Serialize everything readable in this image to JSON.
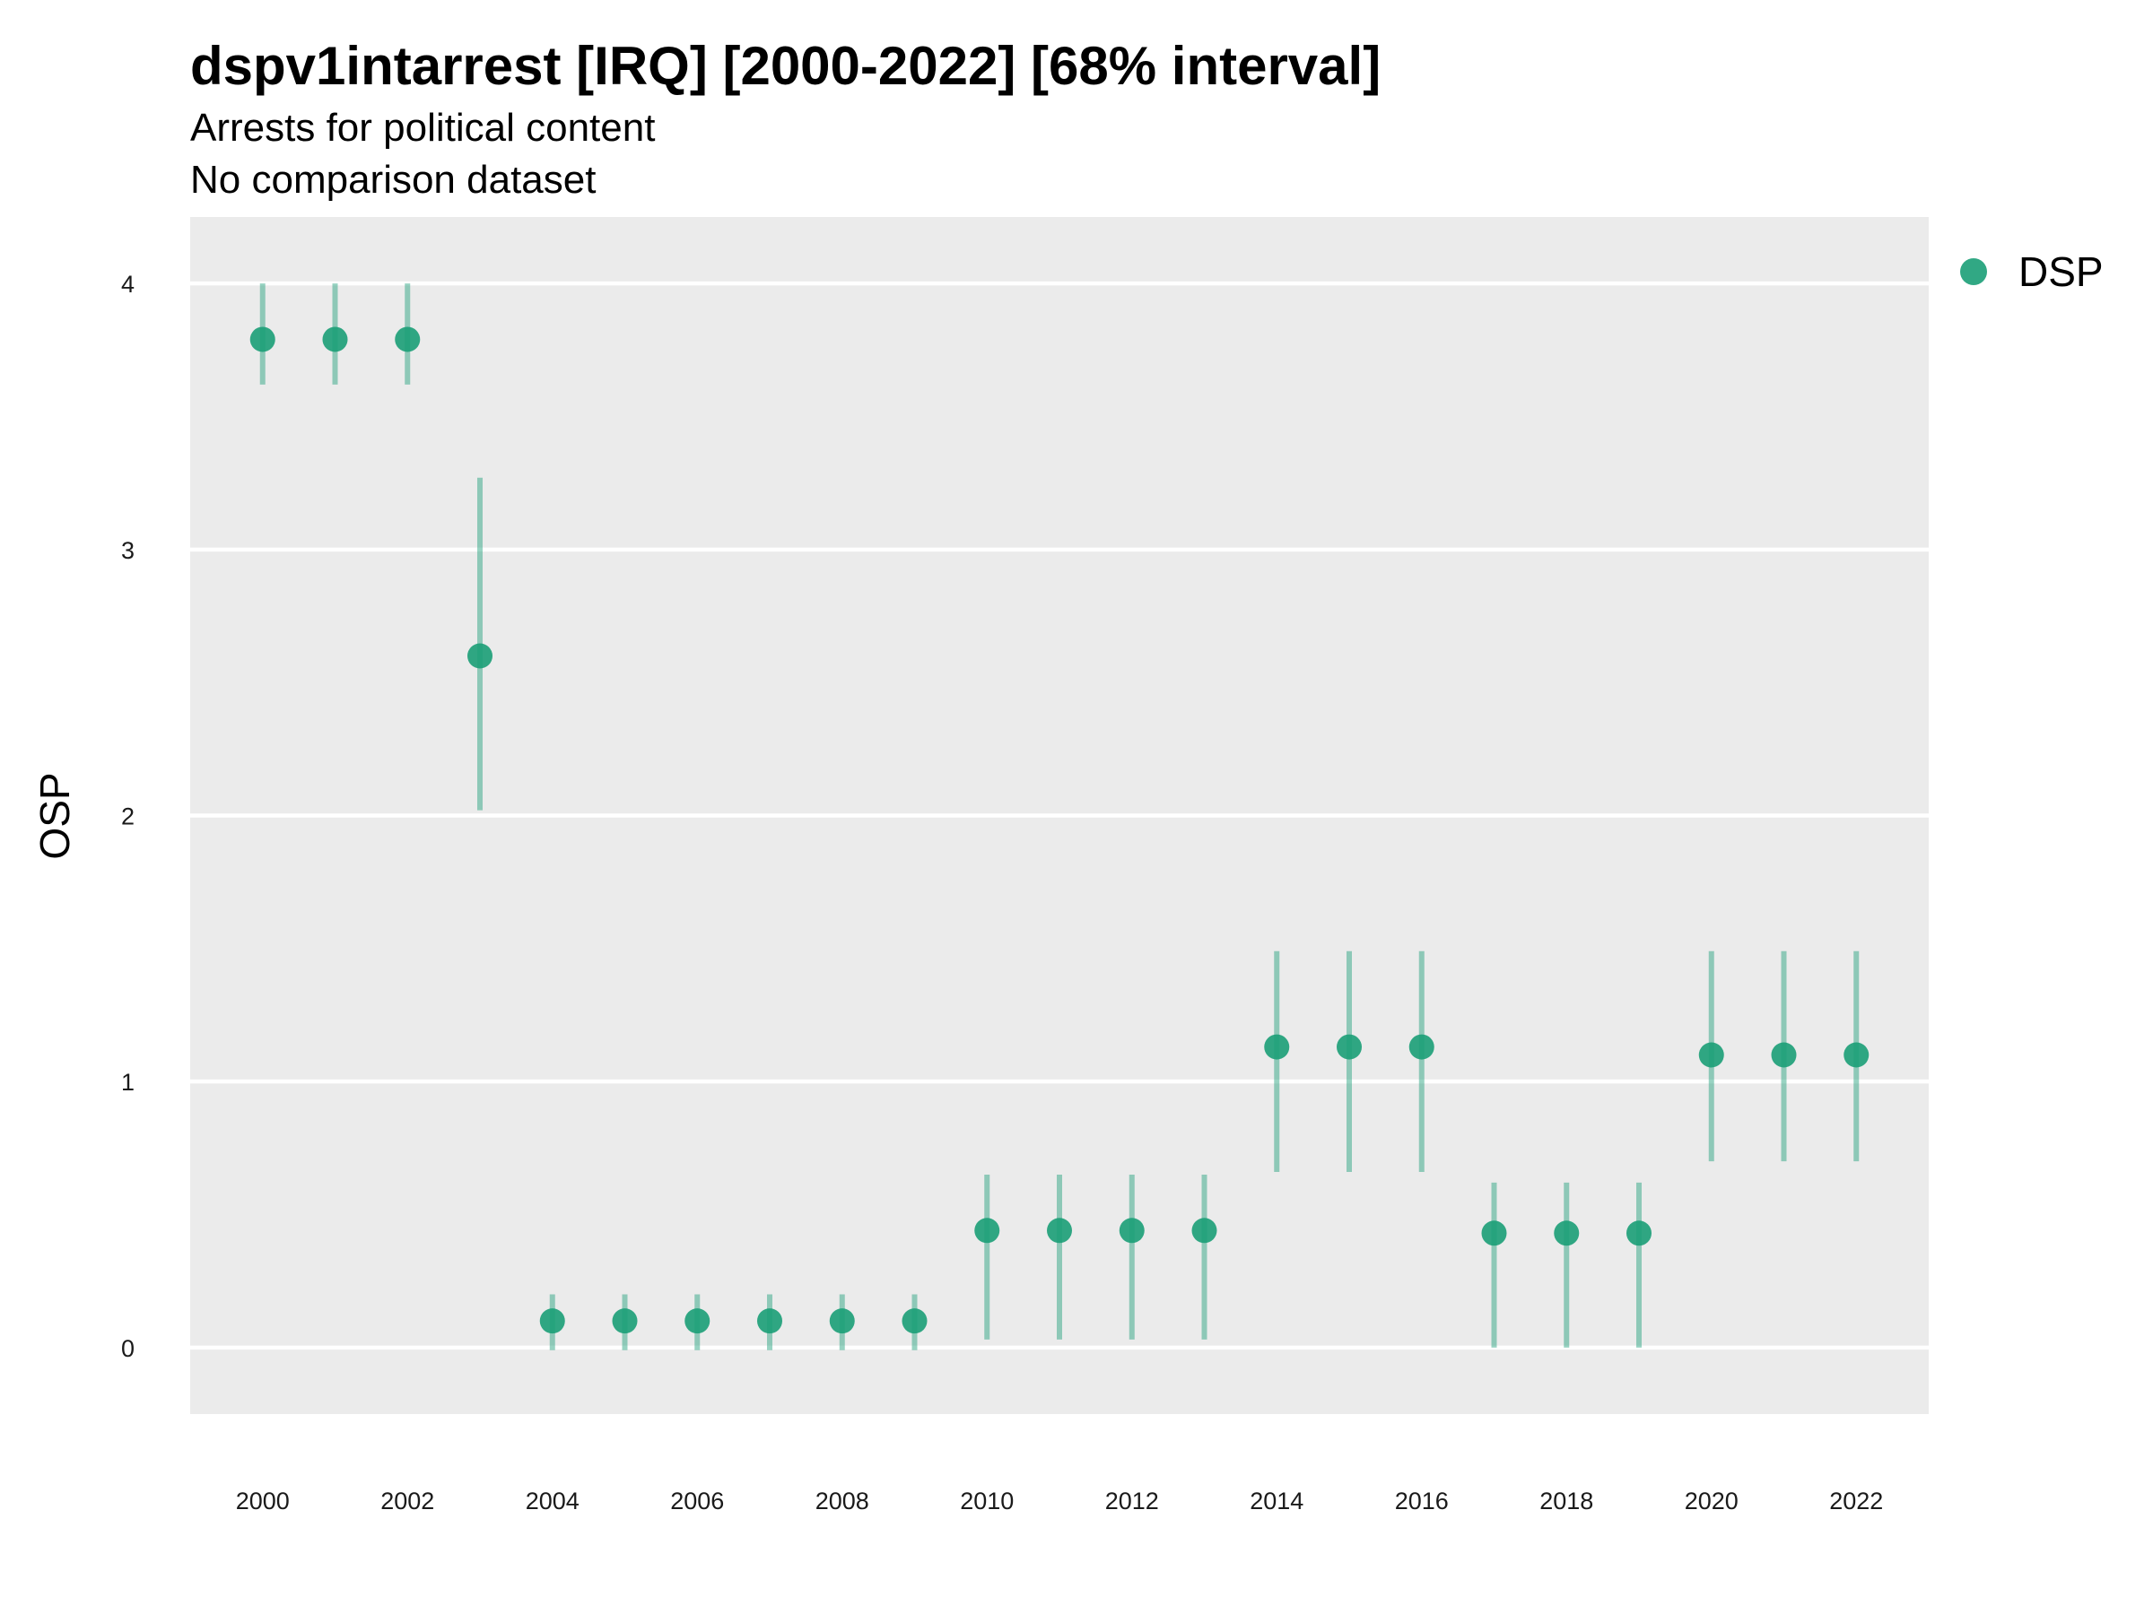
{
  "chart_data": {
    "type": "scatter",
    "title": "dspv1intarrest [IRQ] [2000-2022] [68% interval]",
    "subtitle_lines": [
      "Arrests for political content",
      "No comparison dataset"
    ],
    "xlabel": "",
    "ylabel": "OSP",
    "xlim": [
      1999,
      2023
    ],
    "ylim": [
      -0.25,
      4.25
    ],
    "x_ticks": [
      2000,
      2002,
      2004,
      2006,
      2008,
      2010,
      2012,
      2014,
      2016,
      2018,
      2020,
      2022
    ],
    "y_ticks": [
      0,
      1,
      2,
      3,
      4
    ],
    "grid": true,
    "legend_position": "right",
    "series": [
      {
        "name": "DSP",
        "color": "#1b9e77",
        "x": [
          2000,
          2001,
          2002,
          2003,
          2004,
          2005,
          2006,
          2007,
          2008,
          2009,
          2010,
          2011,
          2012,
          2013,
          2014,
          2015,
          2016,
          2017,
          2018,
          2019,
          2020,
          2021,
          2022
        ],
        "y": [
          3.79,
          3.79,
          3.79,
          2.6,
          0.1,
          0.1,
          0.1,
          0.1,
          0.1,
          0.1,
          0.44,
          0.44,
          0.44,
          0.44,
          1.13,
          1.13,
          1.13,
          0.43,
          0.43,
          0.43,
          1.1,
          1.1,
          1.1
        ],
        "lower": [
          3.62,
          3.62,
          3.62,
          2.02,
          -0.01,
          -0.01,
          -0.01,
          -0.01,
          -0.01,
          -0.01,
          0.03,
          0.03,
          0.03,
          0.03,
          0.66,
          0.66,
          0.66,
          0.0,
          0.0,
          0.0,
          0.7,
          0.7,
          0.7
        ],
        "upper": [
          4.0,
          4.0,
          4.0,
          3.27,
          0.2,
          0.2,
          0.2,
          0.2,
          0.2,
          0.2,
          0.65,
          0.65,
          0.65,
          0.65,
          1.49,
          1.49,
          1.49,
          0.62,
          0.62,
          0.62,
          1.49,
          1.49,
          1.49
        ]
      }
    ]
  }
}
